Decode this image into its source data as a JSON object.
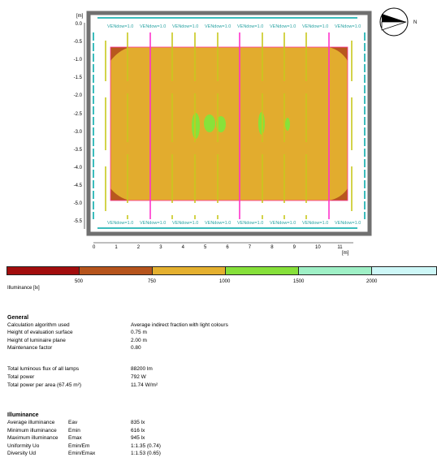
{
  "plan": {
    "y_unit": "[m]",
    "x_unit": "[m]",
    "y_ticks": [
      "0.0",
      "-0.5",
      "-1.0",
      "-1.5",
      "-2.0",
      "-2.5",
      "-3.0",
      "-3.5",
      "-4.0",
      "-4.5",
      "-5.0",
      "-5.5"
    ],
    "x_ticks": [
      "0",
      "1",
      "2",
      "3",
      "4",
      "5",
      "6",
      "7",
      "8",
      "9",
      "10",
      "11"
    ],
    "compass_label": "N",
    "colors": {
      "wall": "#707070",
      "floor_main": "#e2ac2e",
      "floor_dark": "#b8581e",
      "high_spot": "#88e23a",
      "window": "#3cbcbc",
      "luminaire_yellow": "#c8c81e",
      "luminaire_magenta": "#ff33cc"
    }
  },
  "scale_bar": {
    "title": "Illuminance [lx]",
    "labels": [
      "500",
      "750",
      "1000",
      "1500",
      "2000"
    ],
    "colors": [
      "#a20d0d",
      "#b6541c",
      "#e4b02f",
      "#86e03a",
      "#9ff0c6",
      "#cdf7f7"
    ]
  },
  "general": {
    "heading": "General",
    "rows": [
      {
        "label": "Calculation algorithm used",
        "value": "Average indirect fraction with light colours"
      },
      {
        "label": "Height of evaluation surface",
        "value": "0.75 m"
      },
      {
        "label": "Height of luminaire plane",
        "value": "2.00 m"
      },
      {
        "label": "Maintenance factor",
        "value": "0.80"
      }
    ],
    "rows2": [
      {
        "label": "Total luminous flux of all lamps",
        "value": "88200 lm"
      },
      {
        "label": "Total power",
        "value": "792 W"
      },
      {
        "label": "Total power per area (67.45 m²)",
        "value": "11.74 W/m²"
      }
    ]
  },
  "illuminance": {
    "heading": "Illuminance",
    "rows": [
      {
        "label": "Average illuminance",
        "symbol": "Eav",
        "value": "835 lx"
      },
      {
        "label": "Minimum illuminance",
        "symbol": "Emin",
        "value": "616 lx"
      },
      {
        "label": "Maximum illuminance",
        "symbol": "Emax",
        "value": "945 lx"
      },
      {
        "label": "Uniformity Uo",
        "symbol": "Emin/Em",
        "value": "1:1.35 (0.74)"
      },
      {
        "label": "Diversity Ud",
        "symbol": "Emin/Emax",
        "value": "1:1.53 (0.65)"
      }
    ]
  }
}
